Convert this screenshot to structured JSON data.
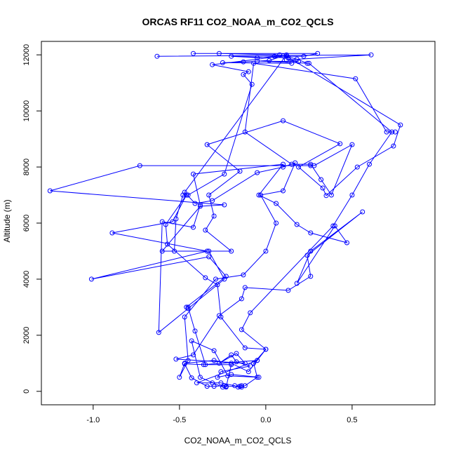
{
  "chart_data": {
    "type": "line",
    "title": "ORCAS RF11 CO2_NOAA_m_CO2_QCLS",
    "xlabel": "CO2_NOAA_m_CO2_QCLS",
    "ylabel": "Altitude (m)",
    "xlim": [
      -1.3,
      0.98
    ],
    "ylim": [
      -480,
      12480
    ],
    "x_ticks": [
      -1.0,
      -0.5,
      0.0,
      0.5
    ],
    "x_tick_labels": [
      "-1.0",
      "-0.5",
      "0.0",
      "0.5"
    ],
    "y_ticks": [
      0,
      2000,
      4000,
      6000,
      8000,
      10000,
      12000
    ],
    "y_tick_labels": [
      "0",
      "2000",
      "4000",
      "6000",
      "8000",
      "10000",
      "12000"
    ],
    "color": "#0000ff",
    "series": [
      {
        "points": [
          [
            -0.63,
            11950
          ],
          [
            0.61,
            12000
          ],
          [
            0.12,
            11820
          ],
          [
            0.19,
            11760
          ],
          [
            -0.05,
            11780
          ],
          [
            0.25,
            11700
          ],
          [
            0.73,
            9250
          ],
          [
            0.6,
            8100
          ],
          [
            0.5,
            7000
          ],
          [
            0.39,
            5900
          ],
          [
            -0.09,
            2800
          ],
          [
            -0.14,
            2200
          ],
          [
            0.0,
            1500
          ],
          [
            -0.05,
            1100
          ],
          [
            -0.36,
            950
          ],
          [
            -0.47,
            980
          ],
          [
            -0.43,
            480
          ],
          [
            -0.34,
            180
          ],
          [
            -0.3,
            180
          ],
          [
            -0.24,
            200
          ],
          [
            -0.23,
            180
          ],
          [
            -0.15,
            180
          ],
          [
            -0.14,
            200
          ]
        ]
      },
      {
        "points": [
          [
            0.12,
            11950
          ],
          [
            0.78,
            9500
          ],
          [
            0.74,
            8750
          ],
          [
            0.53,
            8000
          ],
          [
            0.35,
            6980
          ],
          [
            0.33,
            7250
          ],
          [
            0.19,
            8000
          ],
          [
            0.43,
            8830
          ],
          [
            0.1,
            9650
          ],
          [
            -0.34,
            8800
          ],
          [
            -0.15,
            7850
          ],
          [
            -0.33,
            7000
          ],
          [
            -0.3,
            6250
          ],
          [
            -0.35,
            5750
          ],
          [
            -0.2,
            5000
          ],
          [
            -0.53,
            5000
          ],
          [
            -0.52,
            6150
          ],
          [
            -0.48,
            7000
          ],
          [
            -0.46,
            7000
          ],
          [
            -0.54,
            6050
          ],
          [
            -0.89,
            5650
          ],
          [
            -0.34,
            5000
          ],
          [
            -1.01,
            4000
          ],
          [
            -0.33,
            4800
          ],
          [
            -0.23,
            4100
          ],
          [
            -0.46,
            3000
          ],
          [
            -0.45,
            3000
          ],
          [
            -0.41,
            2150
          ],
          [
            -0.35,
            950
          ],
          [
            -0.2,
            950
          ],
          [
            -0.23,
            150
          ],
          [
            -0.25,
            150
          ],
          [
            -0.38,
            500
          ],
          [
            -0.43,
            1800
          ],
          [
            -0.3,
            1450
          ],
          [
            -0.22,
            550
          ],
          [
            -0.04,
            500
          ],
          [
            -0.2,
            600
          ],
          [
            -0.28,
            500
          ],
          [
            -0.26,
            700
          ],
          [
            -0.09,
            900
          ],
          [
            -0.17,
            1050
          ],
          [
            -0.2,
            1300
          ],
          [
            -0.27,
            1000
          ],
          [
            -0.17,
            1350
          ],
          [
            -0.12,
            1000
          ],
          [
            -0.52,
            1150
          ],
          [
            -0.42,
            1300
          ],
          [
            -0.27,
            2700
          ],
          [
            -0.14,
            3300
          ],
          [
            -0.12,
            3700
          ],
          [
            0.13,
            3600
          ],
          [
            0.26,
            4100
          ],
          [
            0.24,
            4850
          ],
          [
            0.56,
            6400
          ],
          [
            0.26,
            5000
          ],
          [
            0.18,
            3850
          ],
          [
            0.4,
            5900
          ],
          [
            0.47,
            5300
          ],
          [
            0.26,
            5650
          ],
          [
            0.18,
            5950
          ],
          [
            0.06,
            6700
          ],
          [
            -0.04,
            7000
          ],
          [
            0.1,
            8100
          ],
          [
            -0.42,
            7750
          ],
          [
            -0.38,
            6650
          ],
          [
            -0.42,
            5850
          ],
          [
            -0.6,
            6050
          ],
          [
            -0.62,
            2100
          ],
          [
            -0.45,
            2950
          ],
          [
            -0.24,
            4000
          ],
          [
            -0.33,
            5000
          ],
          [
            -0.6,
            5000
          ],
          [
            -0.38,
            6600
          ],
          [
            -0.24,
            6650
          ],
          [
            -1.25,
            7150
          ],
          [
            -0.73,
            8050
          ],
          [
            0.26,
            8050
          ],
          [
            0.28,
            8050
          ],
          [
            0.5,
            8800
          ],
          [
            0.38,
            7000
          ],
          [
            0.32,
            7550
          ],
          [
            0.26,
            8100
          ],
          [
            0.15,
            8100
          ],
          [
            -0.12,
            9250
          ],
          [
            -0.07,
            11700
          ],
          [
            0.52,
            11150
          ],
          [
            0.7,
            9250
          ],
          [
            0.75,
            9250
          ]
        ]
      },
      {
        "points": [
          [
            0.24,
            11700
          ],
          [
            0.18,
            11850
          ],
          [
            0.08,
            12000
          ],
          [
            -0.27,
            12050
          ],
          [
            -0.42,
            12050
          ],
          [
            0.3,
            12050
          ],
          [
            0.22,
            11950
          ],
          [
            0.05,
            11950
          ],
          [
            -0.05,
            11900
          ],
          [
            -0.2,
            11950
          ],
          [
            0.13,
            11900
          ],
          [
            0.1,
            11960
          ],
          [
            -0.31,
            11650
          ],
          [
            -0.1,
            11400
          ],
          [
            -0.13,
            11300
          ],
          [
            -0.08,
            10950
          ],
          [
            -0.24,
            7750
          ],
          [
            -0.45,
            7000
          ],
          [
            -0.46,
            7000
          ],
          [
            -0.58,
            5950
          ],
          [
            -0.57,
            5250
          ],
          [
            -0.35,
            4050
          ],
          [
            -0.28,
            3800
          ],
          [
            -0.26,
            2650
          ],
          [
            -0.12,
            1550
          ],
          [
            0.0,
            1500
          ],
          [
            -0.07,
            1000
          ],
          [
            -0.05,
            500
          ],
          [
            -0.12,
            200
          ],
          [
            -0.14,
            150
          ],
          [
            -0.16,
            150
          ],
          [
            -0.18,
            200
          ],
          [
            -0.26,
            300
          ],
          [
            -0.31,
            300
          ],
          [
            -0.4,
            300
          ],
          [
            -0.05,
            1100
          ],
          [
            -0.1,
            700
          ],
          [
            -0.2,
            1000
          ],
          [
            -0.3,
            1100
          ],
          [
            -0.47,
            1000
          ],
          [
            -0.5,
            500
          ],
          [
            -0.45,
            1100
          ],
          [
            -0.47,
            2650
          ],
          [
            -0.29,
            4000
          ],
          [
            -0.13,
            4150
          ],
          [
            0.0,
            5000
          ],
          [
            0.06,
            6000
          ],
          [
            -0.03,
            7000
          ],
          [
            0.1,
            7150
          ],
          [
            0.17,
            8150
          ],
          [
            0.1,
            8000
          ],
          [
            -0.05,
            7800
          ],
          [
            -0.31,
            6800
          ],
          [
            -0.41,
            6700
          ],
          [
            -0.47,
            7100
          ],
          [
            0.12,
            12000
          ],
          [
            0.02,
            11800
          ],
          [
            -0.13,
            11750
          ],
          [
            -0.25,
            11720
          ],
          [
            0.15,
            11700
          ]
        ]
      }
    ]
  }
}
